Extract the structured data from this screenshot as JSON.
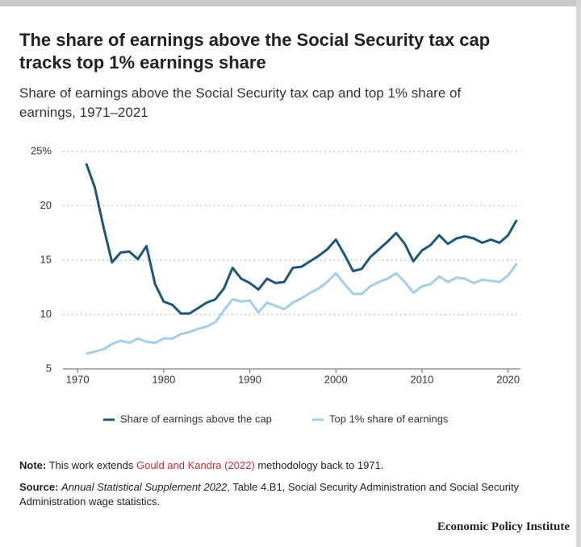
{
  "header": {
    "title_lines": [
      "The share of earnings above the Social Security tax cap",
      "tracks top 1% earnings share"
    ],
    "subtitle_lines": [
      "Share of earnings above the Social Security tax cap and top 1% share of",
      "earnings, 1971–2021"
    ]
  },
  "chart_data": {
    "type": "line",
    "x": [
      1971,
      1972,
      1973,
      1974,
      1975,
      1976,
      1977,
      1978,
      1979,
      1980,
      1981,
      1982,
      1983,
      1984,
      1985,
      1986,
      1987,
      1988,
      1989,
      1990,
      1991,
      1992,
      1993,
      1994,
      1995,
      1996,
      1997,
      1998,
      1999,
      2000,
      2001,
      2002,
      2003,
      2004,
      2005,
      2006,
      2007,
      2008,
      2009,
      2010,
      2011,
      2012,
      2013,
      2014,
      2015,
      2016,
      2017,
      2018,
      2019,
      2020,
      2021
    ],
    "series": [
      {
        "name": "Share of earnings above the cap",
        "color": "#1c5778",
        "values": [
          23.9,
          21.7,
          18.1,
          14.8,
          15.7,
          15.8,
          15.1,
          16.3,
          12.8,
          11.2,
          10.9,
          10.1,
          10.1,
          10.6,
          11.1,
          11.4,
          12.4,
          14.3,
          13.3,
          12.9,
          12.3,
          13.3,
          12.9,
          13.0,
          14.3,
          14.4,
          14.9,
          15.4,
          16.0,
          16.9,
          15.5,
          14.0,
          14.2,
          15.3,
          16.0,
          16.7,
          17.5,
          16.5,
          14.9,
          15.9,
          16.4,
          17.3,
          16.5,
          17.0,
          17.2,
          17.0,
          16.6,
          16.9,
          16.6,
          17.3,
          18.7
        ]
      },
      {
        "name": "Top 1% share of earnings",
        "color": "#a3cdea",
        "values": [
          6.4,
          6.6,
          6.8,
          7.3,
          7.6,
          7.4,
          7.8,
          7.5,
          7.4,
          7.8,
          7.8,
          8.2,
          8.4,
          8.7,
          8.9,
          9.3,
          10.4,
          11.4,
          11.2,
          11.3,
          10.2,
          11.1,
          10.8,
          10.5,
          11.1,
          11.5,
          12.0,
          12.4,
          13.0,
          13.8,
          12.8,
          11.9,
          11.9,
          12.6,
          13.0,
          13.3,
          13.8,
          13.0,
          12.0,
          12.6,
          12.8,
          13.5,
          13.0,
          13.4,
          13.3,
          12.9,
          13.2,
          13.1,
          13.0,
          13.6,
          14.7
        ]
      }
    ],
    "xlim": [
      1968.3,
      2022
    ],
    "xticks": [
      1970,
      1980,
      1990,
      2000,
      2010,
      2020
    ],
    "ylim": [
      5,
      25
    ],
    "yticks": [
      {
        "value": 25,
        "label": "25%"
      },
      20,
      15,
      10,
      5
    ],
    "grid": true,
    "legend": "bottom"
  },
  "notes": {
    "note_label": "Note:",
    "note_text": "This work extends ",
    "note_link": "Gould and Kandra (2022)",
    "note_rest": " methodology back to 1971.",
    "source_label": "Source:",
    "source_title": "Annual Statistical Supplement 2022",
    "source_rest": ", Table 4.B1, Social Security Administration and Social Security Administration wage statistics."
  },
  "footer": {
    "brand": "Economic Policy Institute"
  }
}
